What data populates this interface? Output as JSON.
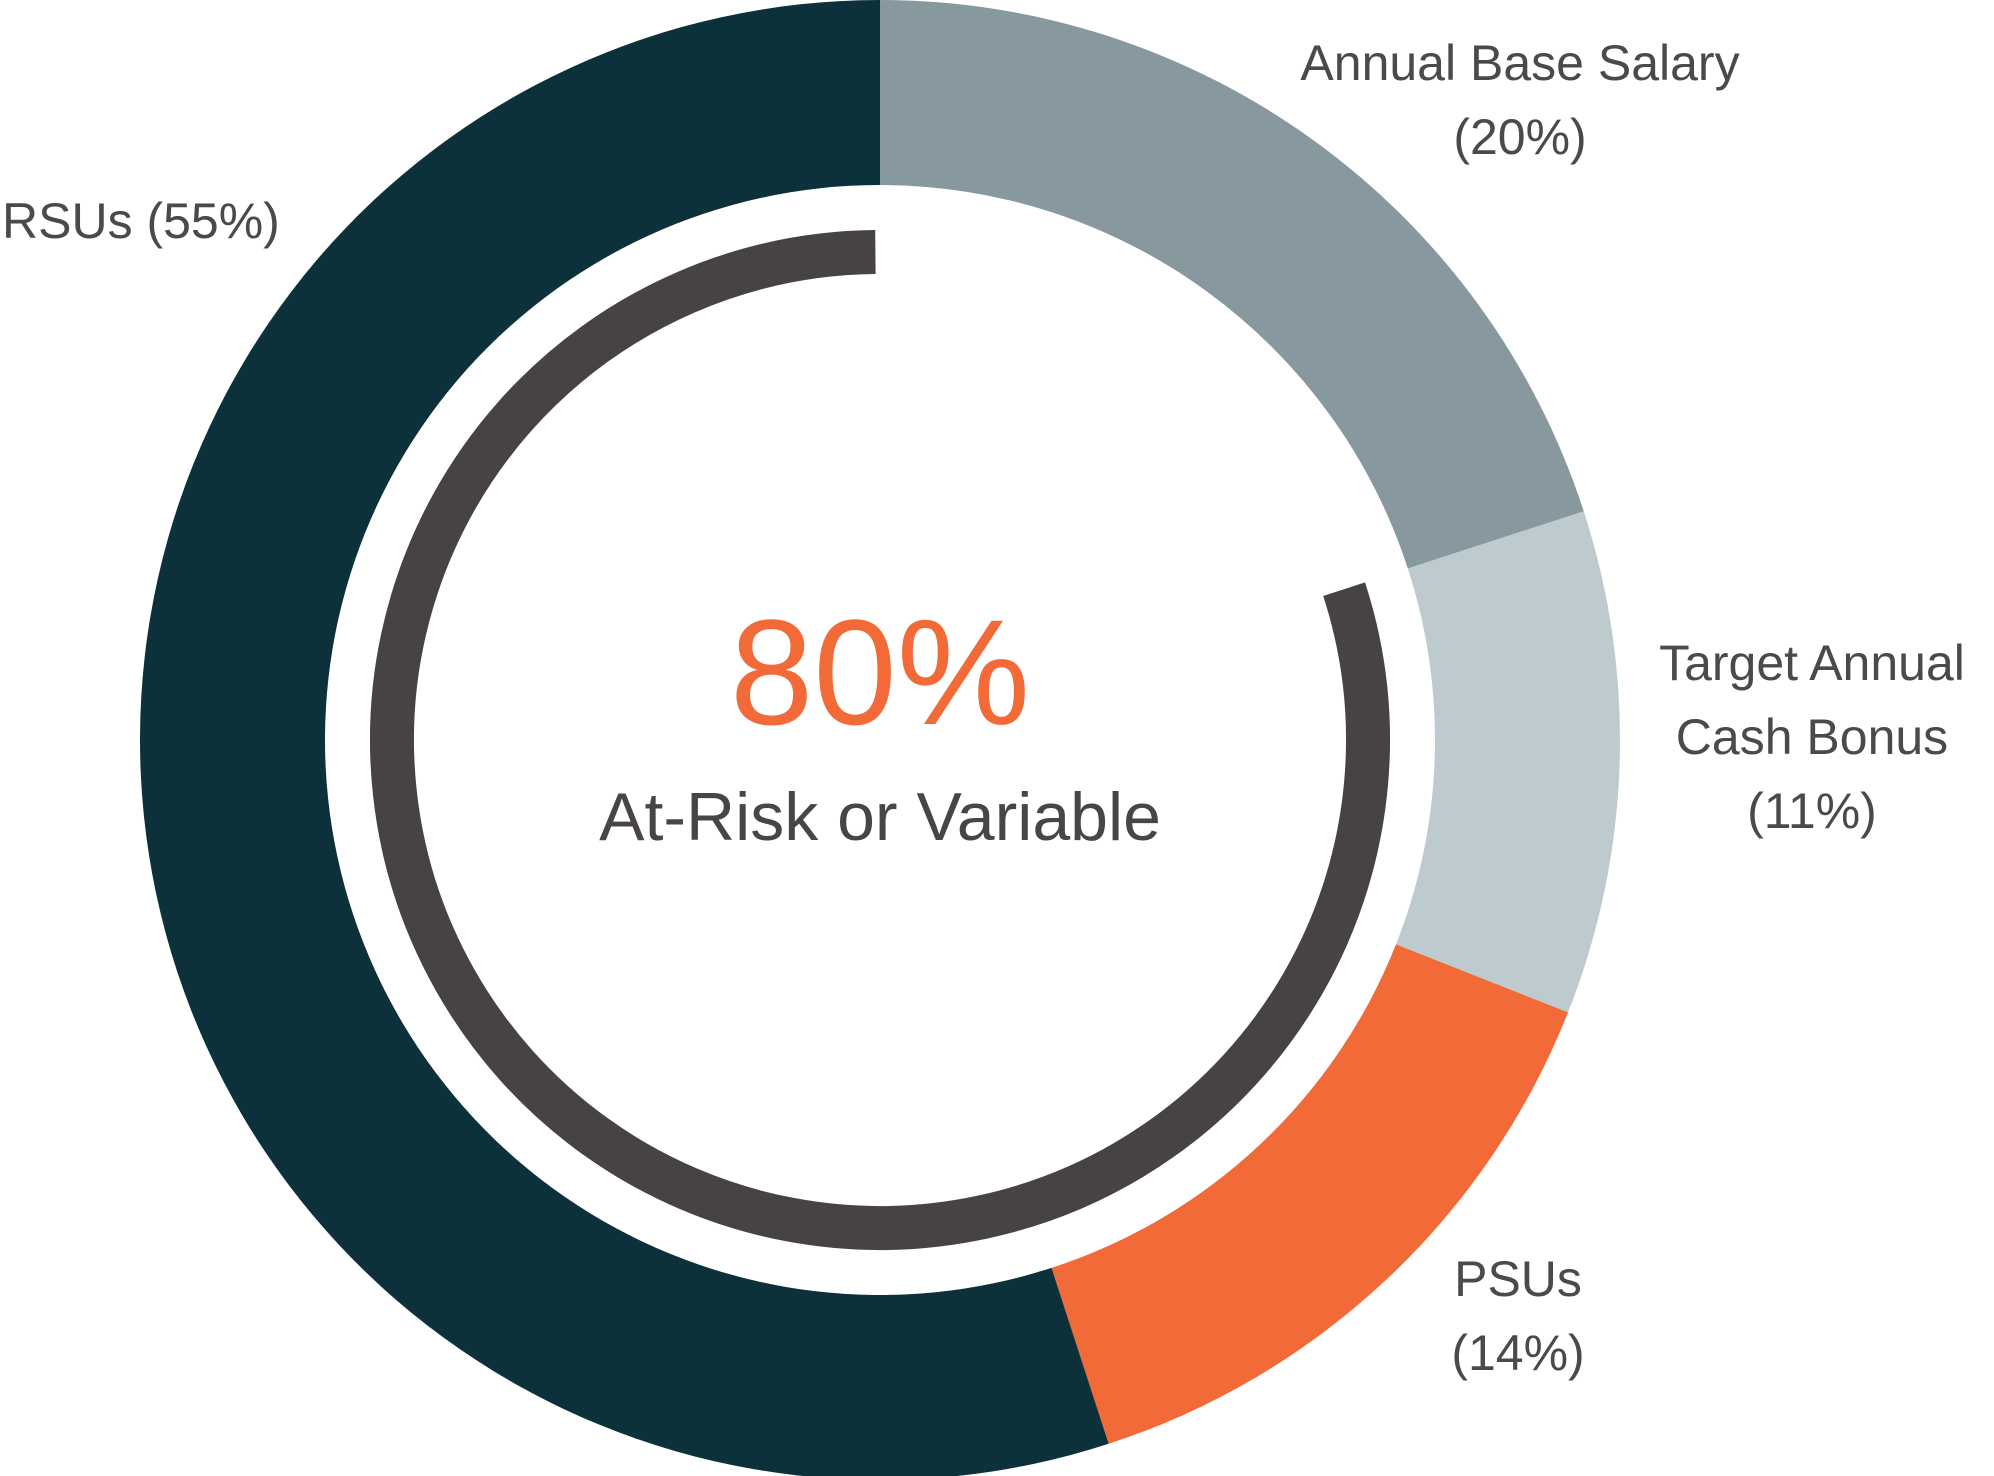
{
  "chart_data": {
    "type": "pie",
    "style": "donut",
    "title": "",
    "start": "top",
    "direction": "clockwise",
    "series": [
      {
        "key": "base-salary",
        "name": "Annual Base Salary",
        "value": 20,
        "label_lines": [
          "Annual Base Salary",
          "(20%)"
        ],
        "color": "#87989e"
      },
      {
        "key": "cash-bonus",
        "name": "Target Annual Cash Bonus",
        "value": 11,
        "label_lines": [
          "Target Annual",
          "Cash Bonus",
          "(11%)"
        ],
        "color": "#bdcbce"
      },
      {
        "key": "psus",
        "name": "PSUs",
        "value": 14,
        "label_lines": [
          "PSUs",
          "(14%)"
        ],
        "color": "#f26a38"
      },
      {
        "key": "rsus",
        "name": "RSUs",
        "value": 55,
        "label_lines": [
          "RSUs (55%)"
        ],
        "color": "#0c313a"
      }
    ],
    "highlight_arc": {
      "description": "inner arc spanning the at-risk / variable portion",
      "start_value": 20,
      "end_value": 100,
      "color": "#474342"
    },
    "center": {
      "value": "80%",
      "caption": "At-Risk or Variable",
      "value_color": "#f26a38"
    },
    "label_color": "#4a4a4a"
  }
}
